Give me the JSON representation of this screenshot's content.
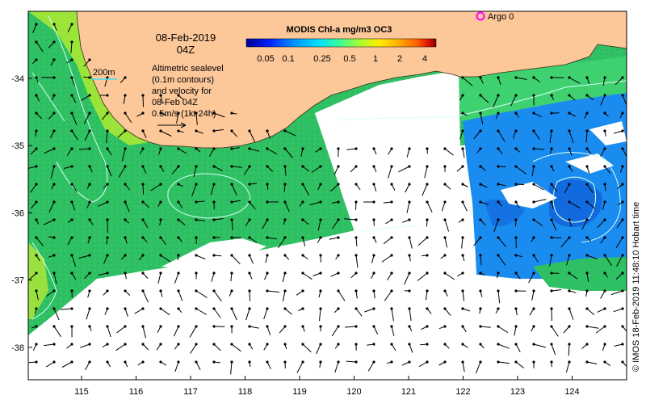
{
  "map": {
    "timestamp_date": "08-Feb-2019",
    "timestamp_time": "04Z",
    "depth_contour_label": "200m",
    "info_lines": [
      "Altimetric sealevel",
      "(0.1m contours)",
      "and velocity for",
      "08-Feb 04Z",
      "0.5m/s (1kt 24h)"
    ],
    "colorbar": {
      "title": "MODIS Chl-a mg/m3 OC3",
      "ticks": [
        "0.05",
        "0.1",
        "0.25",
        "0.5",
        "1",
        "2",
        "4"
      ],
      "ramp": [
        "#00008f",
        "#0020ff",
        "#0090ff",
        "#00e0ff",
        "#40ff90",
        "#a8ff30",
        "#ffee00",
        "#ffb000",
        "#ff6000",
        "#e01000",
        "#800000"
      ]
    },
    "argo_label": "Argo 0",
    "x_ticks": [
      "115",
      "116",
      "117",
      "118",
      "119",
      "120",
      "121",
      "122",
      "123",
      "124"
    ],
    "y_ticks": [
      "-34",
      "-35",
      "-36",
      "-37",
      "-38"
    ],
    "copyright": "© IMOS 18-Feb-2019 11:48:10 Hobart time",
    "colors": {
      "land": "#fcc799",
      "ocean_green": "#2ec062",
      "ocean_blue": "#1a8cf0",
      "cloud": "#ffffff",
      "argo_marker": "#ff00ff",
      "contour": "#c8fff0"
    }
  }
}
